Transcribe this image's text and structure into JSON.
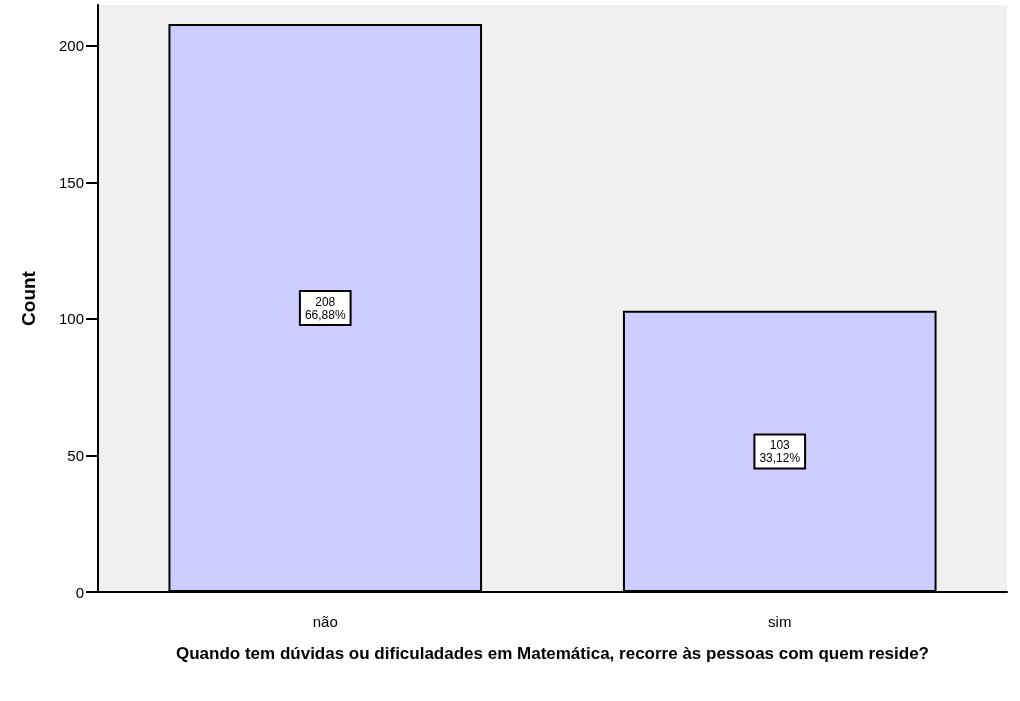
{
  "chart_data": {
    "type": "bar",
    "xlabel": "Quando tem dúvidas ou dificuladades em Matemática, recorre às pessoas com quem reside?",
    "ylabel": "Count",
    "categories": [
      "não",
      "sim"
    ],
    "values": [
      208,
      103
    ],
    "value_labels": [
      "208\n66,88%",
      "103\n33,12%"
    ],
    "color": "#ccccff",
    "ylim": [
      0,
      215
    ],
    "yticks": [
      0,
      50,
      100,
      150,
      200
    ],
    "grid": false
  }
}
